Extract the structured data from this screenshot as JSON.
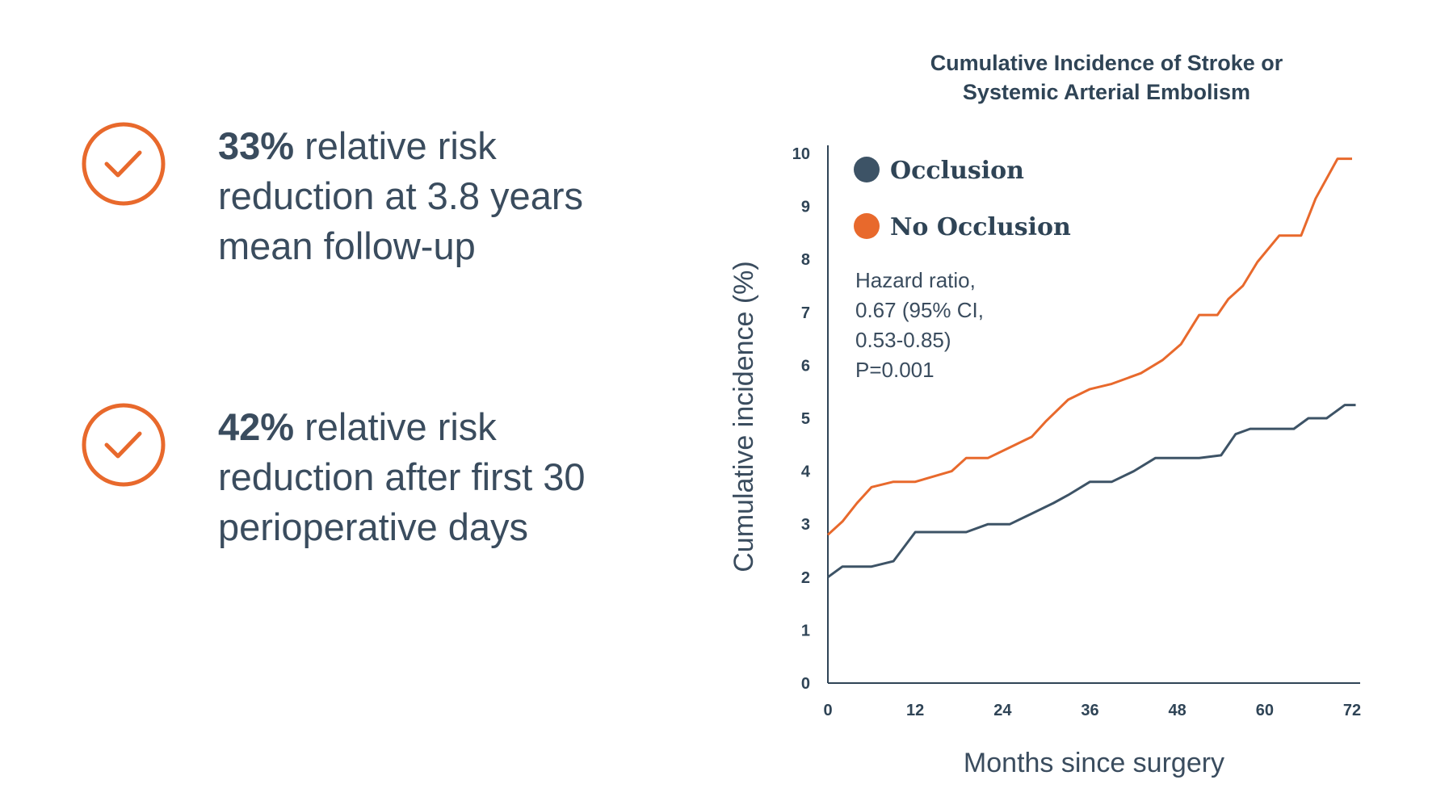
{
  "stats": [
    {
      "icon": "check-circle-icon",
      "bold": "33%",
      "lines": [
        " relative risk",
        "reduction at 3.8 years",
        "mean follow-up"
      ]
    },
    {
      "icon": "check-circle-icon",
      "bold": "42%",
      "lines": [
        " relative risk",
        "reduction after first 30",
        "perioperative days"
      ]
    }
  ],
  "colors": {
    "accent": "#e8692c",
    "navy": "#3a4c5e"
  },
  "chart_data": {
    "type": "line",
    "title_lines": [
      "Cumulative Incidence of Stroke or",
      "Systemic Arterial Embolism"
    ],
    "xlabel": "Months since surgery",
    "ylabel": "Cumulative incidence (%)",
    "xlim": [
      0,
      72
    ],
    "ylim": [
      0,
      10
    ],
    "xticks": [
      0,
      12,
      24,
      36,
      48,
      60,
      72
    ],
    "yticks": [
      0,
      1,
      2,
      3,
      4,
      5,
      6,
      7,
      8,
      9,
      10
    ],
    "grid": false,
    "legend_position": "top-left",
    "annotation_lines": [
      "Hazard ratio,",
      "0.67 (95% CI,",
      "0.53-0.85)",
      "P=0.001"
    ],
    "series": [
      {
        "name": "Occlusion",
        "color": "#3d5366",
        "points": [
          [
            0,
            2.0
          ],
          [
            2,
            2.2
          ],
          [
            6,
            2.2
          ],
          [
            9,
            2.3
          ],
          [
            12,
            2.85
          ],
          [
            19,
            2.85
          ],
          [
            22,
            3.0
          ],
          [
            25,
            3.0
          ],
          [
            28,
            3.2
          ],
          [
            31,
            3.4
          ],
          [
            33,
            3.55
          ],
          [
            36,
            3.8
          ],
          [
            39,
            3.8
          ],
          [
            42,
            4.0
          ],
          [
            45,
            4.25
          ],
          [
            51,
            4.25
          ],
          [
            54,
            4.3
          ],
          [
            56,
            4.7
          ],
          [
            58,
            4.8
          ],
          [
            64,
            4.8
          ],
          [
            66,
            5.0
          ],
          [
            68.5,
            5.0
          ],
          [
            71,
            5.25
          ],
          [
            72.5,
            5.25
          ]
        ]
      },
      {
        "name": "No Occlusion",
        "color": "#e8692c",
        "points": [
          [
            0,
            2.8
          ],
          [
            2,
            3.05
          ],
          [
            4,
            3.4
          ],
          [
            6,
            3.7
          ],
          [
            9,
            3.8
          ],
          [
            12,
            3.8
          ],
          [
            17,
            4.0
          ],
          [
            19,
            4.25
          ],
          [
            22,
            4.25
          ],
          [
            25,
            4.45
          ],
          [
            28,
            4.65
          ],
          [
            30,
            4.95
          ],
          [
            33,
            5.35
          ],
          [
            36,
            5.55
          ],
          [
            39,
            5.65
          ],
          [
            43,
            5.85
          ],
          [
            46,
            6.1
          ],
          [
            48.5,
            6.4
          ],
          [
            51,
            6.95
          ],
          [
            53.5,
            6.95
          ],
          [
            55,
            7.25
          ],
          [
            57,
            7.5
          ],
          [
            59,
            7.95
          ],
          [
            62,
            8.45
          ],
          [
            65,
            8.45
          ],
          [
            67,
            9.15
          ],
          [
            70,
            9.9
          ],
          [
            72,
            9.9
          ]
        ]
      }
    ]
  }
}
